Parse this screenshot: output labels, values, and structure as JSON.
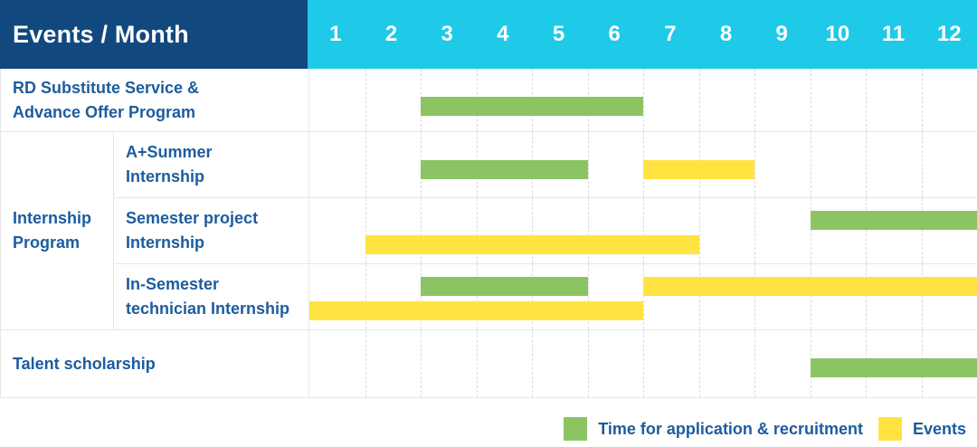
{
  "header": {
    "title": "Events / Month",
    "months": [
      "1",
      "2",
      "3",
      "4",
      "5",
      "6",
      "7",
      "8",
      "9",
      "10",
      "11",
      "12"
    ]
  },
  "group": {
    "label_lines": [
      "Internship",
      "Program"
    ]
  },
  "rows": [
    {
      "label_lines": [
        "RD Substitute Service &",
        "Advance Offer Program"
      ],
      "bars": [
        {
          "color": "green",
          "start_month": 3,
          "end_month": 6,
          "lane": "center"
        }
      ]
    },
    {
      "label_lines": [
        "A+Summer",
        "Internship"
      ],
      "bars": [
        {
          "color": "green",
          "start_month": 3,
          "end_month": 5,
          "lane": "center"
        },
        {
          "color": "yellow",
          "start_month": 7,
          "end_month": 8,
          "lane": "center"
        }
      ]
    },
    {
      "label_lines": [
        "Semester project",
        "Internship"
      ],
      "bars": [
        {
          "color": "green",
          "start_month": 10,
          "end_month": 12,
          "lane": "upper"
        },
        {
          "color": "yellow",
          "start_month": 2,
          "end_month": 7,
          "lane": "lower"
        }
      ]
    },
    {
      "label_lines": [
        "In-Semester",
        "technician Internship"
      ],
      "bars": [
        {
          "color": "green",
          "start_month": 3,
          "end_month": 5,
          "lane": "upper"
        },
        {
          "color": "yellow",
          "start_month": 7,
          "end_month": 12,
          "lane": "upper"
        },
        {
          "color": "yellow",
          "start_month": 1,
          "end_month": 6,
          "lane": "lower"
        }
      ]
    },
    {
      "label_lines": [
        "Talent scholarship"
      ],
      "bars": [
        {
          "color": "green",
          "start_month": 10,
          "end_month": 12,
          "lane": "center"
        }
      ]
    }
  ],
  "legend": {
    "items": [
      {
        "color": "green",
        "label": "Time for application & recruitment"
      },
      {
        "color": "yellow",
        "label": "Events"
      }
    ]
  },
  "colors": {
    "navy": "#11497E",
    "cyan": "#1FC9E8",
    "green": "#8CC463",
    "yellow": "#FFE441",
    "label_blue": "#1C5C9E"
  },
  "chart_data": {
    "type": "gantt",
    "title": "Events / Month",
    "x_axis": {
      "label": "Month",
      "ticks": [
        1,
        2,
        3,
        4,
        5,
        6,
        7,
        8,
        9,
        10,
        11,
        12
      ],
      "range": [
        1,
        12
      ]
    },
    "grid": "vertical-dashed",
    "legend_position": "bottom-right",
    "series_legend": [
      {
        "name": "Time for application & recruitment",
        "color": "#8CC463"
      },
      {
        "name": "Events",
        "color": "#FFE441"
      }
    ],
    "tasks": [
      {
        "row": "RD Substitute Service & Advance Offer Program",
        "group": null,
        "series": "Time for application & recruitment",
        "start_month": 3,
        "end_month": 6
      },
      {
        "row": "A+Summer Internship",
        "group": "Internship Program",
        "series": "Time for application & recruitment",
        "start_month": 3,
        "end_month": 5
      },
      {
        "row": "A+Summer Internship",
        "group": "Internship Program",
        "series": "Events",
        "start_month": 7,
        "end_month": 8
      },
      {
        "row": "Semester project Internship",
        "group": "Internship Program",
        "series": "Time for application & recruitment",
        "start_month": 10,
        "end_month": 12
      },
      {
        "row": "Semester project Internship",
        "group": "Internship Program",
        "series": "Events",
        "start_month": 2,
        "end_month": 7
      },
      {
        "row": "In-Semester technician Internship",
        "group": "Internship Program",
        "series": "Time for application & recruitment",
        "start_month": 3,
        "end_month": 5
      },
      {
        "row": "In-Semester technician Internship",
        "group": "Internship Program",
        "series": "Events",
        "start_month": 7,
        "end_month": 12
      },
      {
        "row": "In-Semester technician Internship",
        "group": "Internship Program",
        "series": "Events",
        "start_month": 1,
        "end_month": 6
      },
      {
        "row": "Talent scholarship",
        "group": null,
        "series": "Time for application & recruitment",
        "start_month": 10,
        "end_month": 12
      }
    ]
  }
}
